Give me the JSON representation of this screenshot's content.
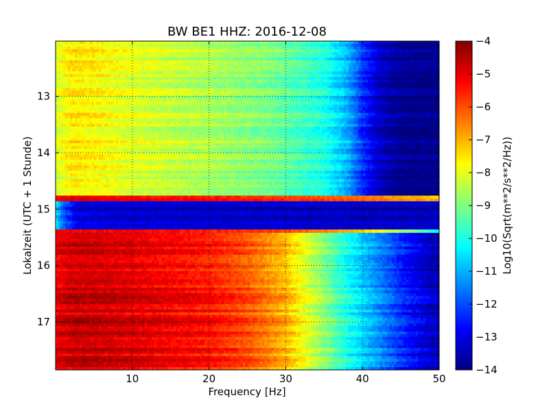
{
  "chart_data": {
    "type": "heatmap",
    "title": "BW BE1 HHZ: 2016-12-08",
    "xlabel": "Frequency [Hz]",
    "ylabel": "Lokalzeit (UTC + 1 Stunde)",
    "colorbar_label": "Log10(Sqrt(m**2/s**2/Hz))",
    "xlim": [
      0,
      50
    ],
    "ylim": [
      12.02,
      17.85
    ],
    "y_inverted": true,
    "clim": [
      -14,
      -4
    ],
    "colormap": "jet",
    "grid": true,
    "x_ticks": [
      10,
      20,
      30,
      40,
      50
    ],
    "x_tick_labels": [
      "10",
      "20",
      "30",
      "40",
      "50"
    ],
    "y_ticks": [
      13,
      14,
      15,
      16,
      17
    ],
    "y_tick_labels": [
      "13",
      "14",
      "15",
      "16",
      "17"
    ],
    "colorbar_ticks": [
      -4,
      -5,
      -6,
      -7,
      -8,
      -9,
      -10,
      -11,
      -12,
      -13,
      -14
    ],
    "colorbar_tick_labels": [
      "−4",
      "−5",
      "−6",
      "−7",
      "−8",
      "−9",
      "−10",
      "−11",
      "−12",
      "−13",
      "−14"
    ],
    "segments": [
      {
        "time_range": [
          12.02,
          14.76
        ],
        "values_by_freq": {
          "freqs": [
            0,
            2,
            5,
            10,
            20,
            28,
            35,
            38,
            40,
            42,
            45,
            50
          ],
          "values": [
            -8.2,
            -7.6,
            -7.7,
            -8.1,
            -8.6,
            -9.1,
            -10.0,
            -11.0,
            -12.3,
            -13.3,
            -13.9,
            -14.0
          ]
        }
      },
      {
        "time_range": [
          14.76,
          14.86
        ],
        "values_by_freq": {
          "freqs": [
            0,
            2,
            5,
            10,
            20,
            30,
            40,
            50
          ],
          "values": [
            -5.0,
            -4.8,
            -4.9,
            -5.0,
            -5.2,
            -5.6,
            -6.2,
            -7.0
          ]
        }
      },
      {
        "time_range": [
          14.86,
          15.36
        ],
        "values_by_freq": {
          "freqs": [
            0,
            1,
            3,
            10,
            30,
            50
          ],
          "values": [
            -10.5,
            -12.0,
            -13.2,
            -13.3,
            -13.4,
            -13.5
          ]
        }
      },
      {
        "time_range": [
          15.36,
          15.42
        ],
        "values_by_freq": {
          "freqs": [
            0,
            10,
            20,
            30,
            40,
            50
          ],
          "values": [
            -5.0,
            -5.0,
            -5.4,
            -5.7,
            -7.0,
            -10.0
          ]
        }
      },
      {
        "time_range": [
          15.42,
          17.85
        ],
        "values_by_freq": {
          "freqs": [
            0,
            2,
            5,
            10,
            20,
            25,
            30,
            34,
            38,
            42,
            46,
            50
          ],
          "values": [
            -5.0,
            -4.7,
            -4.7,
            -4.9,
            -5.4,
            -6.0,
            -7.0,
            -8.5,
            -10.0,
            -11.3,
            -12.6,
            -13.5
          ]
        }
      }
    ]
  }
}
